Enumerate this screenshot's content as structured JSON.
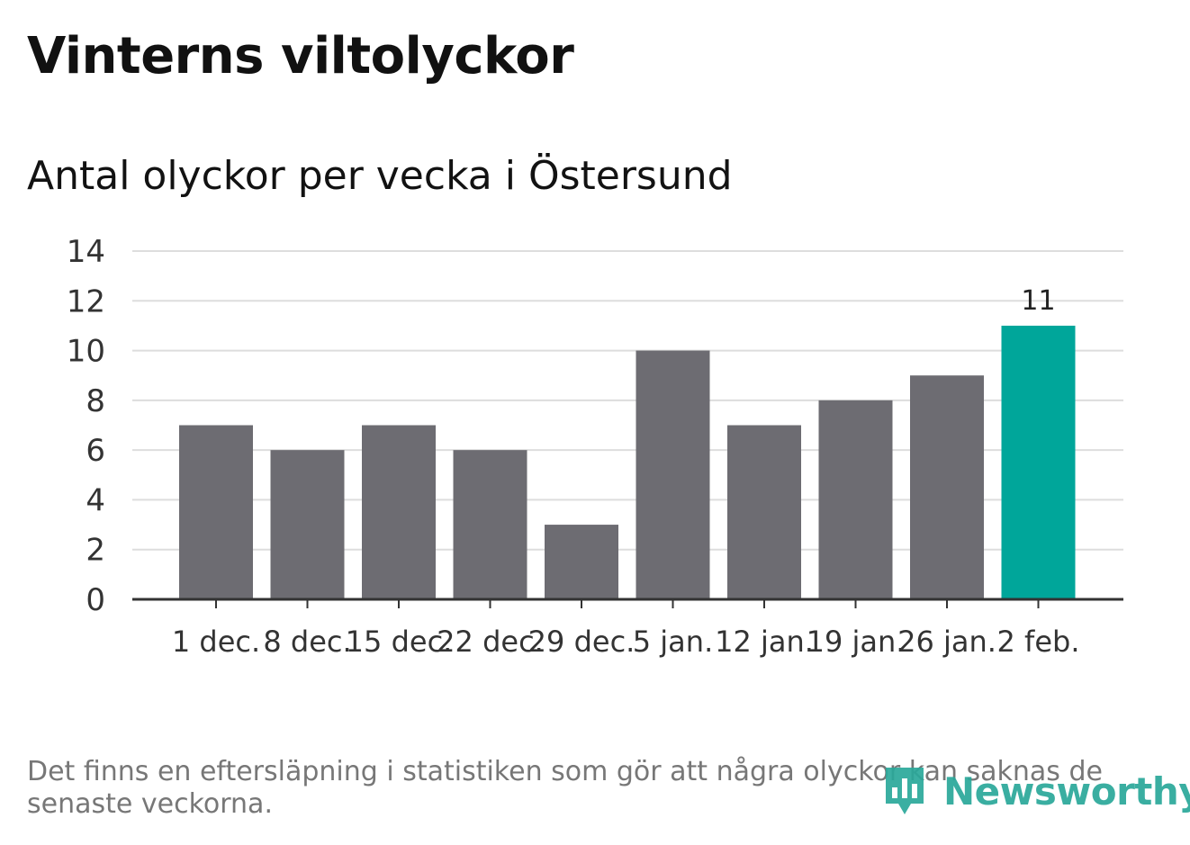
{
  "title": "Vinterns viltolyckor",
  "subtitle": "Antal olyckor per vecka i Östersund",
  "footnote": "Det finns en eftersläpning i statistiken som gör att några olyckor kan saknas de senaste veckorna.",
  "logo": {
    "text": "Newsworthy",
    "icon": "newsworthy-logo-icon"
  },
  "colors": {
    "bar": "#6d6c72",
    "highlight": "#00a69a",
    "grid": "#dddddd",
    "axis": "#333333",
    "tick_text": "#333333",
    "logo": "#2aa89a"
  },
  "chart_data": {
    "type": "bar",
    "title": "Vinterns viltolyckor",
    "subtitle": "Antal olyckor per vecka i Östersund",
    "xlabel": "",
    "ylabel": "",
    "categories": [
      "1 dec.",
      "8 dec.",
      "15 dec.",
      "22 dec.",
      "29 dec.",
      "5 jan.",
      "12 jan.",
      "19 jan.",
      "26 jan.",
      "2 feb."
    ],
    "values": [
      7,
      6,
      7,
      6,
      3,
      10,
      7,
      8,
      9,
      11
    ],
    "highlight_index": 9,
    "data_labels": [
      {
        "index": 9,
        "text": "11"
      }
    ],
    "ylim": [
      0,
      14
    ],
    "yticks": [
      0,
      2,
      4,
      6,
      8,
      10,
      12,
      14
    ],
    "grid": true,
    "legend": "none"
  }
}
